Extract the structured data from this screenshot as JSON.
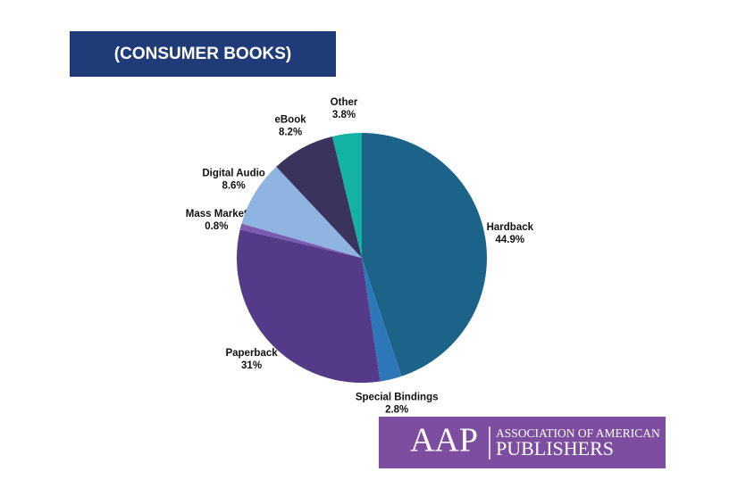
{
  "chart_data": {
    "type": "pie",
    "title": "(CONSUMER BOOKS)",
    "categories": [
      "Hardback",
      "Special Bindings",
      "Paperback",
      "Mass Market",
      "Digital Audio",
      "eBook",
      "Other"
    ],
    "values": [
      44.9,
      2.8,
      31,
      0.8,
      8.6,
      8.2,
      3.8
    ],
    "value_labels": [
      "44.9%",
      "2.8%",
      "31%",
      "0.8%",
      "8.6%",
      "8.2%",
      "3.8%"
    ],
    "colors": [
      "#1b6389",
      "#2e77b8",
      "#553a89",
      "#7a5cb0",
      "#8fb4e2",
      "#39335e",
      "#14b2a5"
    ]
  },
  "logo": {
    "mark": "AAP",
    "line1": "ASSOCIATION OF AMERICAN",
    "line2": "PUBLISHERS"
  }
}
